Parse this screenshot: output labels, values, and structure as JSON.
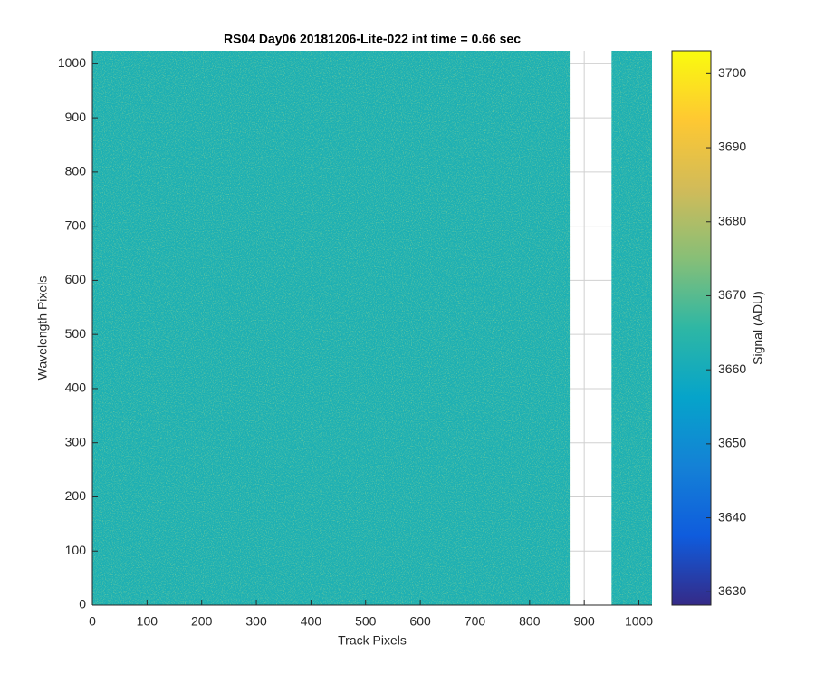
{
  "chart_data": {
    "type": "image",
    "title": "RS04 Day06 20181206-Lite-022 int time = 0.66 sec",
    "x_label": "Track Pixels",
    "y_label": "Wavelength Pixels",
    "xlim": [
      0,
      1024
    ],
    "ylim": [
      0,
      1024
    ],
    "xticks": [
      0,
      100,
      200,
      300,
      400,
      500,
      600,
      700,
      800,
      900,
      1000
    ],
    "yticks": [
      0,
      100,
      200,
      300,
      400,
      500,
      600,
      700,
      800,
      900,
      1000
    ],
    "grid": true,
    "segments": [
      {
        "x": [
          0,
          875
        ],
        "value": 3662
      },
      {
        "x": [
          950,
          1024
        ],
        "value": 3662
      }
    ],
    "colorbar": {
      "label": "Signal (ADU)",
      "lim": [
        3628.2,
        3703.1
      ],
      "ticks": [
        3630,
        3640,
        3650,
        3660,
        3670,
        3680,
        3690,
        3700
      ],
      "colormap": [
        "#352a87",
        "#0f5cdd",
        "#1481d6",
        "#06a4ca",
        "#2eb7a4",
        "#87bf77",
        "#d1bb59",
        "#fec832",
        "#f9fb0e"
      ]
    }
  }
}
